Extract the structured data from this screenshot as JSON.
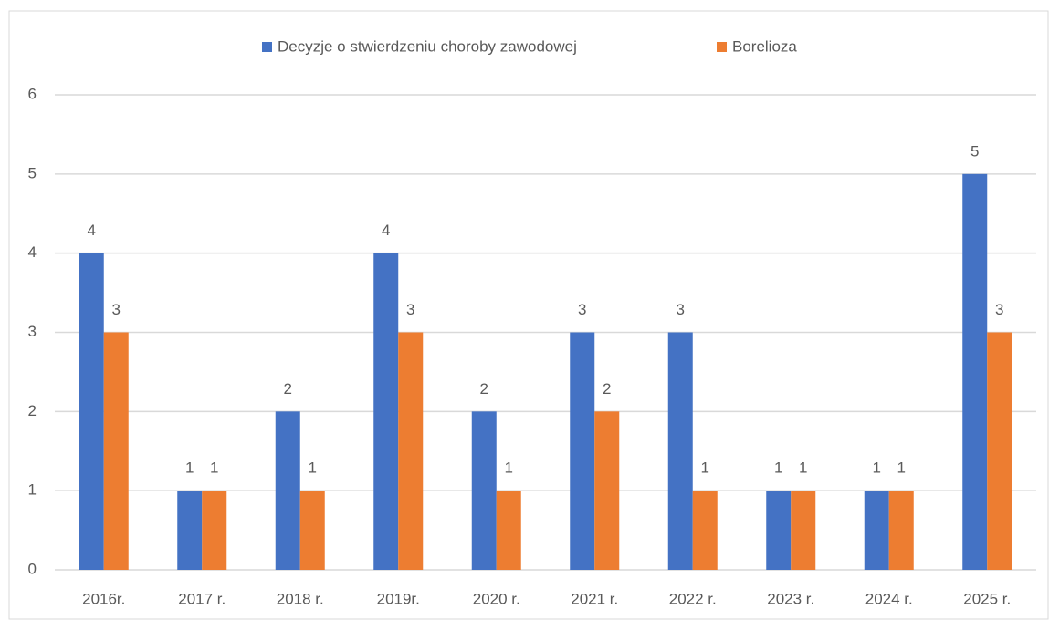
{
  "chart_data": {
    "type": "bar",
    "categories": [
      "2016r.",
      "2017 r.",
      "2018 r.",
      "2019r.",
      "2020 r.",
      "2021 r.",
      "2022 r.",
      "2023 r.",
      "2024 r.",
      "2025 r."
    ],
    "series": [
      {
        "name": "Decyzje o stwierdzeniu choroby zawodowej",
        "color": "#4472c4",
        "values": [
          4,
          1,
          2,
          4,
          2,
          3,
          3,
          1,
          1,
          5
        ]
      },
      {
        "name": "Borelioza",
        "color": "#ed7d31",
        "values": [
          3,
          1,
          1,
          3,
          1,
          2,
          1,
          1,
          1,
          3
        ]
      }
    ],
    "ylim": [
      0,
      6
    ],
    "yticks": [
      0,
      1,
      2,
      3,
      4,
      5,
      6
    ],
    "grid": true,
    "legend": "top"
  }
}
